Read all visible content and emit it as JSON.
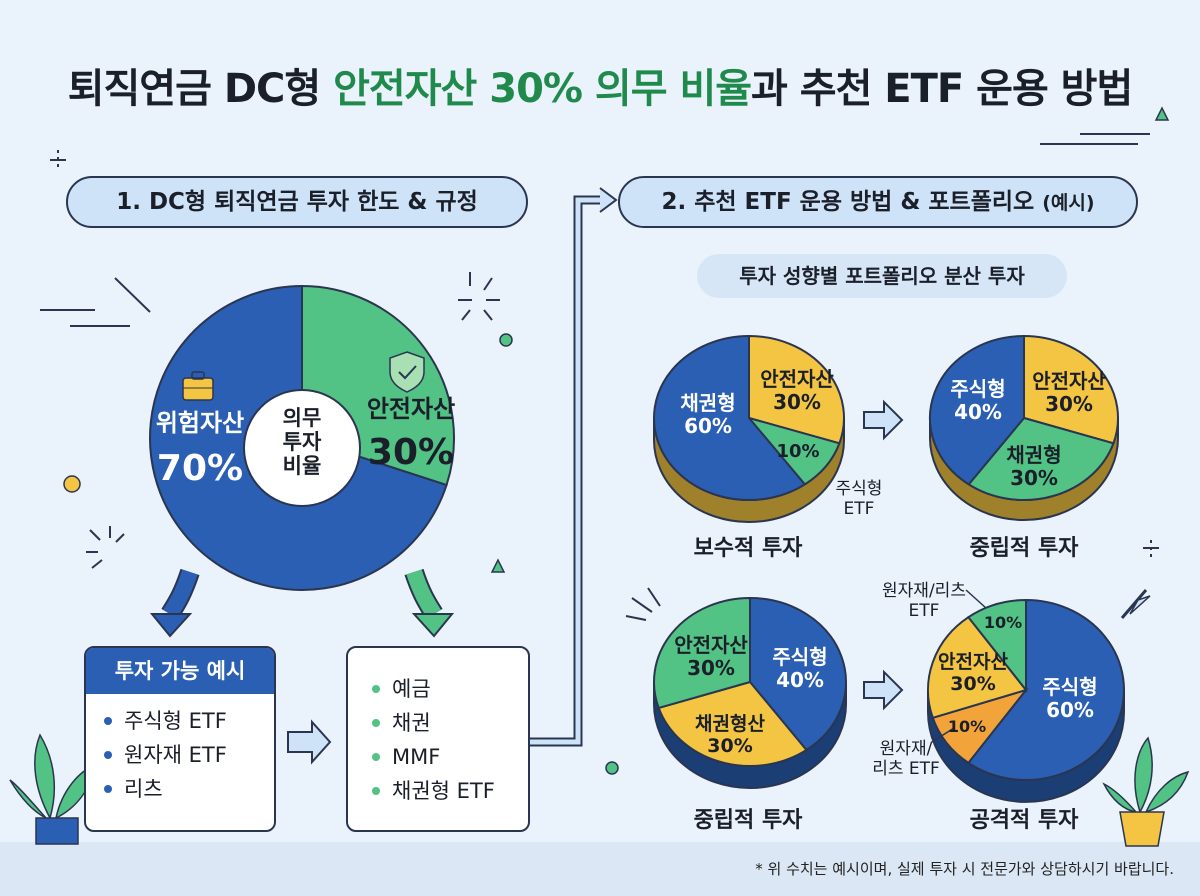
{
  "title": {
    "prefix": "퇴직연금 DC형 ",
    "highlight": "안전자산 30% 의무 비율",
    "suffix": "과 추천 ETF 운용 방법"
  },
  "section1": {
    "title": "1. DC형 퇴직연금 투자 한도 & 규정"
  },
  "section2": {
    "title": "2. 추천 ETF 운용 방법 & 포트폴리오",
    "title_suffix": "(예시)",
    "subtitle": "투자 성향별 포트폴리오 분산 투자"
  },
  "main_pie": {
    "risk_label": "위험자산",
    "risk_value": "70%",
    "safe_label": "안전자산",
    "safe_value": "30%",
    "center_line1": "의무",
    "center_line2": "투자",
    "center_line3": "비율"
  },
  "risk_box": {
    "title": "투자 가능 예시",
    "items": [
      "주식형 ETF",
      "원자재 ETF",
      "리츠"
    ]
  },
  "safe_box": {
    "items": [
      "예금",
      "채권",
      "MMF",
      "채권형 ETF"
    ]
  },
  "portfolios": {
    "conservative": {
      "caption": "보수적 투자",
      "bond_label": "채권형",
      "bond_value": "60%",
      "safe_label": "안전자산",
      "safe_value": "30%",
      "stock_value": "10%",
      "stock_label_1": "주식형",
      "stock_label_2": "ETF"
    },
    "neutral1": {
      "caption": "중립적 투자",
      "stock_label": "주식형",
      "stock_value": "40%",
      "safe_label": "안전자산",
      "safe_value": "30%",
      "bond_label": "채권형",
      "bond_value": "30%"
    },
    "neutral2": {
      "caption": "중립적 투자",
      "safe_label": "안전자산",
      "safe_value": "30%",
      "stock_label": "주식형",
      "stock_value": "40%",
      "bond_label": "채권형산",
      "bond_value": "30%"
    },
    "aggressive": {
      "caption": "공격적 투자",
      "stock_label": "주식형",
      "stock_value": "60%",
      "safe_label": "안전자산",
      "safe_value": "30%",
      "commodity_value": "10%",
      "reits_value": "10%",
      "top_callout_1": "원자재/리츠",
      "top_callout_2": "ETF",
      "bottom_callout_1": "원자재/",
      "bottom_callout_2": "리츠 ETF"
    }
  },
  "footnote": "* 위 수치는 예시이며, 실제 투자 시 전문가와 상담하시기 바랍니다.",
  "colors": {
    "blue": "#2a5fb4",
    "green": "#52c285",
    "yellow": "#f4c542",
    "orange": "#f2a43a",
    "navy": "#2a3550"
  }
}
